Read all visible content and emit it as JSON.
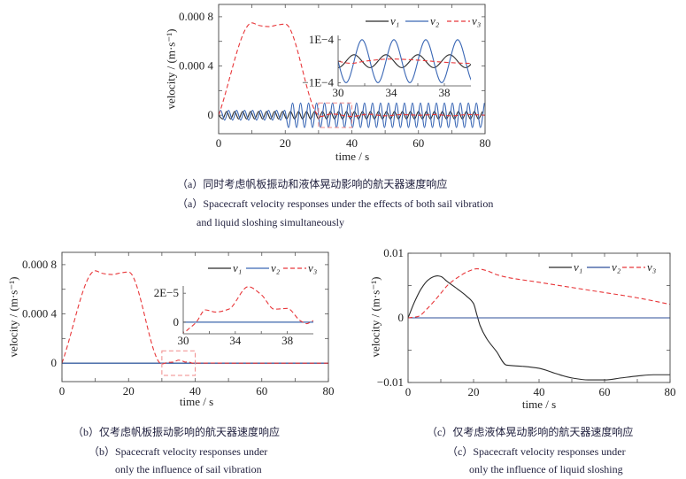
{
  "chart_data": [
    {
      "type": "line",
      "xlabel": "time / s",
      "ylabel": "velocity / (m·s⁻¹)",
      "xlim": [
        0,
        80
      ],
      "ylim": [
        -0.00015,
        0.0009
      ],
      "grid": false,
      "legend": {
        "position": "top-right"
      },
      "xticks": [
        {
          "value": 0,
          "label": "0"
        },
        {
          "value": 10,
          "label": ""
        },
        {
          "value": 20,
          "label": "20"
        },
        {
          "value": 30,
          "label": ""
        },
        {
          "value": 40,
          "label": "40"
        },
        {
          "value": 50,
          "label": ""
        },
        {
          "value": 60,
          "label": "60"
        },
        {
          "value": 70,
          "label": ""
        },
        {
          "value": 80,
          "label": "80"
        }
      ],
      "yticks": [
        {
          "value": 0,
          "label": "0"
        },
        {
          "value": 0.0002,
          "label": ""
        },
        {
          "value": 0.0004,
          "label": "0.000 4"
        },
        {
          "value": 0.0006,
          "label": ""
        },
        {
          "value": 0.0008,
          "label": "0.000 8"
        }
      ],
      "zoom_box": {
        "xlim": [
          30,
          40
        ],
        "ylim": [
          -0.0001,
          0.0001
        ],
        "color": "#f08a8a"
      },
      "inset": {
        "xlim": [
          30,
          40
        ],
        "ylim": [
          -0.000115,
          0.00012
        ],
        "xticks": [
          {
            "value": 30,
            "label": "30"
          },
          {
            "value": 32,
            "label": ""
          },
          {
            "value": 34,
            "label": "34"
          },
          {
            "value": 36,
            "label": ""
          },
          {
            "value": 38,
            "label": "38"
          }
        ],
        "yticks": [
          {
            "value": 0.0001,
            "label": "1E−4"
          },
          {
            "value": 0,
            "label": ""
          },
          {
            "value": -0.0001,
            "label": "−1E−4"
          }
        ]
      },
      "series": [
        {
          "name": "v₁",
          "color": "#2a2a2a",
          "dash": "solid",
          "x": [
            0,
            1.2,
            2.4,
            3.6,
            4.8,
            6,
            7.2,
            8.4,
            9.6,
            10.8,
            12,
            13.2,
            14.4,
            15.6,
            16.8,
            18,
            19.2,
            20.4,
            21.6,
            22.8,
            24,
            25.2,
            26.4,
            27.6,
            28.8,
            30,
            31.2,
            32.4,
            33.6,
            34.8,
            36,
            37.2,
            38.4,
            39.6,
            40.8,
            42,
            43.2,
            44.4,
            45.6,
            46.8,
            48,
            49.2,
            50.4,
            51.6,
            52.8,
            54,
            55.2,
            56.4,
            57.6,
            58.8,
            60,
            61.2,
            62.4,
            63.6,
            64.8,
            66,
            67.2,
            68.4,
            69.6,
            70.8,
            72,
            73.2,
            74.4,
            75.6,
            76.8,
            78,
            79.2
          ],
          "y": [
            0,
            -3e-05,
            3e-05,
            -3e-05,
            3e-05,
            -3e-05,
            3e-05,
            -3e-05,
            3e-05,
            -3e-05,
            3e-05,
            -3e-05,
            3e-05,
            -3e-05,
            3e-05,
            -3e-05,
            3e-05,
            -3e-05,
            3e-05,
            -3e-05,
            3e-05,
            -3e-05,
            3e-05,
            -3e-05,
            3e-05,
            -3e-05,
            3e-05,
            -3e-05,
            3e-05,
            -3e-05,
            3e-05,
            -3e-05,
            3e-05,
            -3e-05,
            3e-05,
            -3e-05,
            3e-05,
            -3e-05,
            3e-05,
            -3e-05,
            3e-05,
            -3e-05,
            3e-05,
            -3e-05,
            3e-05,
            -3e-05,
            3e-05,
            -3e-05,
            3e-05,
            -3e-05,
            3e-05,
            -3e-05,
            3e-05,
            -3e-05,
            3e-05,
            -3e-05,
            3e-05,
            -3e-05,
            3e-05,
            -3e-05,
            3e-05,
            -3e-05,
            3e-05,
            -3e-05,
            3e-05,
            -3e-05,
            3e-05
          ]
        },
        {
          "name": "v₂",
          "color": "#3a67b5",
          "dash": "solid",
          "x": [
            0,
            0.6,
            1.8,
            3,
            4.2,
            5.4,
            6.6,
            7.8,
            9,
            10.2,
            11.4,
            12.6,
            13.8,
            15,
            16.2,
            17.4,
            18.6,
            19.8,
            21,
            22.2,
            23.4,
            24.6,
            25.8,
            27,
            28.2,
            29.4,
            30.6,
            31.8,
            33,
            34.2,
            35.4,
            36.6,
            37.8,
            39,
            40.2,
            41.4,
            42.6,
            43.8,
            45,
            46.2,
            47.4,
            48.6,
            49.8,
            51,
            52.2,
            53.4,
            54.6,
            55.8,
            57,
            58.2,
            59.4,
            60.6,
            61.8,
            63,
            64.2,
            65.4,
            66.6,
            67.8,
            69,
            70.2,
            71.4,
            72.6,
            73.8,
            75,
            76.2,
            77.4,
            78.6,
            79.8
          ],
          "y": [
            0,
            4e-05,
            -4e-05,
            4e-05,
            -4e-05,
            4e-05,
            -4e-05,
            4e-05,
            -4e-05,
            4e-05,
            -4e-05,
            4e-05,
            -4e-05,
            4e-05,
            -4e-05,
            4e-05,
            -4e-05,
            4e-05,
            -0.0001,
            0.0001,
            -0.0001,
            0.0001,
            -0.0001,
            0.0001,
            -0.0001,
            0.0001,
            -0.0001,
            0.0001,
            -0.0001,
            0.0001,
            -0.0001,
            0.0001,
            -0.0001,
            0.0001,
            -0.0001,
            0.0001,
            -0.0001,
            0.0001,
            -0.0001,
            0.0001,
            -0.0001,
            0.0001,
            -0.0001,
            0.0001,
            -0.0001,
            0.0001,
            -0.0001,
            0.0001,
            -0.0001,
            0.0001,
            -0.0001,
            0.0001,
            -0.0001,
            0.0001,
            -0.0001,
            0.0001,
            -0.0001,
            0.0001,
            -0.0001,
            0.0001,
            -0.0001,
            0.0001,
            -0.0001,
            0.0001,
            -0.0001,
            0.0001,
            -0.0001,
            0.0001
          ]
        },
        {
          "name": "v₃",
          "color": "#e8373a",
          "dash": "dashed",
          "x": [
            0,
            10,
            12,
            15,
            18,
            20,
            30,
            31,
            32,
            34,
            36,
            37,
            38,
            40,
            45,
            50,
            55,
            60,
            65,
            70,
            75,
            80
          ],
          "y": [
            0,
            0.00075,
            0.00073,
            0.00072,
            0.000735,
            0.00074,
            0,
            -1e-05,
            0,
            1e-05,
            5e-06,
            0,
            -5e-06,
            -1e-05,
            8e-06,
            -5e-06,
            5e-06,
            0,
            5e-06,
            -5e-06,
            5e-06,
            0
          ]
        }
      ],
      "caption": {
        "zh": "（a）同时考虑帆板振动和液体晃动影响的航天器速度响应",
        "en": [
          "（a）Spacecraft velocity responses under the effects of both sail vibration",
          "and liquid sloshing simultaneously"
        ]
      }
    },
    {
      "type": "line",
      "xlabel": "time / s",
      "ylabel": "velocity / (m·s⁻¹)",
      "xlim": [
        0,
        80
      ],
      "ylim": [
        -0.00015,
        0.0009
      ],
      "grid": false,
      "legend": {
        "position": "top-right"
      },
      "xticks": [
        {
          "value": 0,
          "label": "0"
        },
        {
          "value": 10,
          "label": ""
        },
        {
          "value": 20,
          "label": "20"
        },
        {
          "value": 30,
          "label": ""
        },
        {
          "value": 40,
          "label": "40"
        },
        {
          "value": 50,
          "label": ""
        },
        {
          "value": 60,
          "label": "60"
        },
        {
          "value": 70,
          "label": ""
        },
        {
          "value": 80,
          "label": "80"
        }
      ],
      "yticks": [
        {
          "value": 0,
          "label": "0"
        },
        {
          "value": 0.0002,
          "label": ""
        },
        {
          "value": 0.0004,
          "label": "0.000 4"
        },
        {
          "value": 0.0006,
          "label": ""
        },
        {
          "value": 0.0008,
          "label": "0.000 8"
        }
      ],
      "zoom_box": {
        "xlim": [
          30,
          40
        ],
        "ylim": [
          -0.0001,
          0.0001
        ],
        "color": "#f08a8a"
      },
      "inset": {
        "xlim": [
          30,
          40
        ],
        "ylim": [
          -8e-06,
          2.5e-05
        ],
        "xticks": [
          {
            "value": 30,
            "label": "30"
          },
          {
            "value": 32,
            "label": ""
          },
          {
            "value": 34,
            "label": "34"
          },
          {
            "value": 36,
            "label": ""
          },
          {
            "value": 38,
            "label": "38"
          }
        ],
        "yticks": [
          {
            "value": 2e-05,
            "label": "2E−5"
          },
          {
            "value": 0,
            "label": "0"
          }
        ]
      },
      "series": [
        {
          "name": "v₁",
          "color": "#2a2a2a",
          "dash": "solid",
          "x": [
            0,
            80
          ],
          "y": [
            0,
            0
          ]
        },
        {
          "name": "v₂",
          "color": "#3a67b5",
          "dash": "solid",
          "x": [
            0,
            80
          ],
          "y": [
            0,
            0
          ]
        },
        {
          "name": "v₃",
          "color": "#e8373a",
          "dash": "dashed",
          "x": [
            0,
            10,
            12,
            15,
            18,
            20,
            30,
            30.5,
            31,
            31.7,
            32.5,
            33.5,
            35,
            36,
            37,
            38,
            39,
            39.5,
            40,
            42,
            45,
            50,
            60,
            70,
            80
          ],
          "y": [
            0,
            0.00075,
            0.00073,
            0.00072,
            0.000735,
            0.00074,
            -7e-06,
            -4e-06,
            0,
            8.5e-06,
            7e-06,
            9e-06,
            2.45e-05,
            1.9e-05,
            9e-06,
            9.5e-06,
            1e-06,
            -1e-06,
            1e-06,
            0,
            1e-06,
            0,
            0,
            0,
            0
          ]
        }
      ],
      "caption": {
        "zh": "（b）仅考虑帆板振动影响的航天器速度响应",
        "en": [
          "（b）Spacecraft velocity responses under",
          "only the influence of sail vibration"
        ]
      }
    },
    {
      "type": "line",
      "xlabel": "time / s",
      "ylabel": "velocity / (m·s⁻¹)",
      "xlim": [
        0,
        80
      ],
      "ylim": [
        -0.01,
        0.01
      ],
      "grid": false,
      "legend": {
        "position": "top-right"
      },
      "xticks": [
        {
          "value": 0,
          "label": "0"
        },
        {
          "value": 10,
          "label": ""
        },
        {
          "value": 20,
          "label": "20"
        },
        {
          "value": 30,
          "label": ""
        },
        {
          "value": 40,
          "label": "40"
        },
        {
          "value": 50,
          "label": ""
        },
        {
          "value": 60,
          "label": "60"
        },
        {
          "value": 70,
          "label": ""
        },
        {
          "value": 80,
          "label": "80"
        }
      ],
      "yticks": [
        {
          "value": -0.01,
          "label": "−0.01"
        },
        {
          "value": -0.005,
          "label": ""
        },
        {
          "value": 0,
          "label": "0"
        },
        {
          "value": 0.005,
          "label": ""
        },
        {
          "value": 0.01,
          "label": "0.01"
        }
      ],
      "series": [
        {
          "name": "v₁",
          "color": "#2a2a2a",
          "dash": "solid",
          "x": [
            0,
            2,
            4,
            6,
            8,
            9,
            10,
            12,
            15,
            18,
            20,
            21,
            22,
            24,
            27,
            30,
            35,
            40,
            45,
            50,
            55,
            60,
            65,
            70,
            75,
            80
          ],
          "y": [
            0,
            0.0025,
            0.0045,
            0.0058,
            0.0064,
            0.0065,
            0.0064,
            0.0056,
            0.0045,
            0.0033,
            0.0022,
            0.0005,
            -0.0012,
            -0.0032,
            -0.0052,
            -0.0073,
            -0.0075,
            -0.0078,
            -0.0086,
            -0.0093,
            -0.0096,
            -0.0096,
            -0.0093,
            -0.009,
            -0.0088,
            -0.0088
          ]
        },
        {
          "name": "v₂",
          "color": "#2f4f9a",
          "dash": "solid",
          "x": [
            0,
            80
          ],
          "y": [
            0,
            0
          ]
        },
        {
          "name": "v₃",
          "color": "#e8373a",
          "dash": "dashed",
          "x": [
            0,
            3,
            6,
            8,
            10,
            12,
            15,
            18,
            21,
            24,
            27,
            30,
            40,
            55,
            70,
            80
          ],
          "y": [
            0,
            0.0002,
            0.0015,
            0.0026,
            0.0038,
            0.005,
            0.0062,
            0.0071,
            0.0076,
            0.0073,
            0.0067,
            0.0063,
            0.0055,
            0.0043,
            0.0031,
            0.0021
          ]
        }
      ],
      "caption": {
        "zh": "（c）仅考虑液体晃动影响的航天器速度响应",
        "en": [
          "（c）Spacecraft velocity responses under",
          "only the influence of liquid sloshing"
        ]
      }
    }
  ]
}
